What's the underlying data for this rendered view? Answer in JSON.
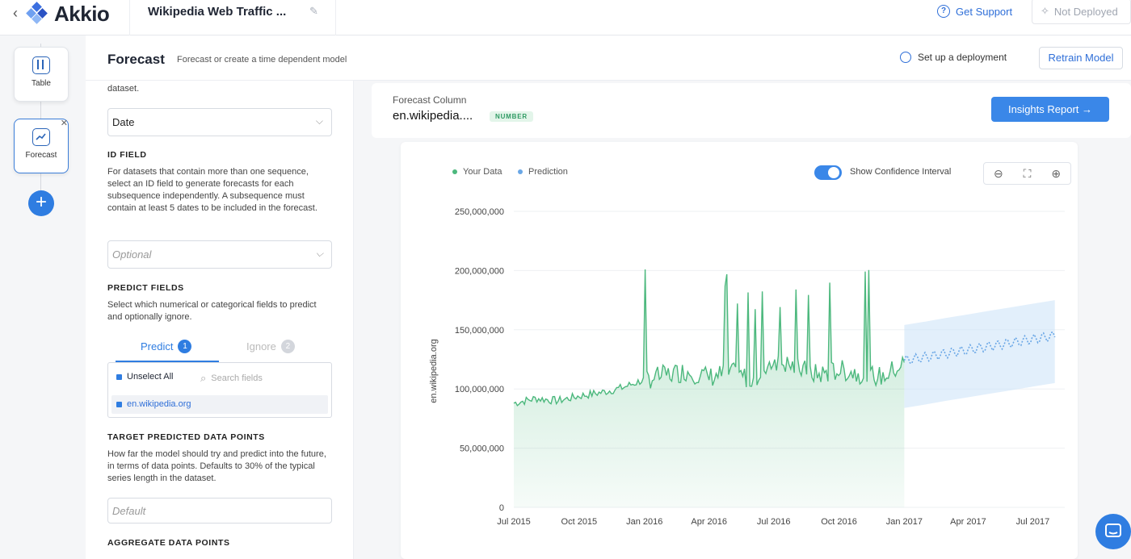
{
  "topbar": {
    "back_icon": "chevron-left-icon",
    "brand": "Akkio",
    "project_title": "Wikipedia Web Traffic ...",
    "support_label": "Get Support",
    "deploy_status": "Not Deployed"
  },
  "rail": {
    "nodes": [
      {
        "label": "Table",
        "icon": "table-icon"
      },
      {
        "label": "Forecast",
        "icon": "trend-icon"
      }
    ],
    "add_label": "+"
  },
  "header": {
    "title": "Forecast",
    "subtitle": "Forecast or create a time dependent model",
    "setup_label": "Set up a deployment",
    "retrain_label": "Retrain Model"
  },
  "panel": {
    "intro_tail": "dataset.",
    "date_value": "Date",
    "id_field_heading": "ID FIELD",
    "id_field_help": "For datasets that contain more than one sequence, select an ID field to generate forecasts for each subsequence independently. A subsequence must contain at least 5 dates to be included in the forecast.",
    "id_placeholder": "Optional",
    "predict_heading": "PREDICT FIELDS",
    "predict_help": "Select which numerical or categorical fields to predict and optionally ignore.",
    "tab_predict": "Predict",
    "tab_predict_count": "1",
    "tab_ignore": "Ignore",
    "tab_ignore_count": "2",
    "unselect_all": "Unselect All",
    "search_placeholder": "Search fields",
    "field_item": "en.wikipedia.org",
    "target_heading": "TARGET PREDICTED DATA POINTS",
    "target_help": "How far the model should try and predict into the future, in terms of data points. Defaults to 30% of the typical series length in the dataset.",
    "target_placeholder": "Default",
    "aggregate_heading": "AGGREGATE DATA POINTS"
  },
  "forecast_column": {
    "label": "Forecast Column",
    "value": "en.wikipedia....",
    "type_tag": "NUMBER",
    "insights_label": "Insights Report →"
  },
  "chart_controls": {
    "legend_data": "Your Data",
    "legend_prediction": "Prediction",
    "confidence_label": "Show Confidence Interval",
    "confidence_on": true
  },
  "colors": {
    "accent": "#2f7de1",
    "data_green": "#4cb87d",
    "prediction_blue": "#6aa7e6"
  },
  "chart_data": {
    "type": "line",
    "ylabel": "en.wikipedia.org",
    "ylim": [
      0,
      250000000
    ],
    "yticks": [
      "0",
      "50,000,000",
      "100,000,000",
      "150,000,000",
      "200,000,000",
      "250,000,000"
    ],
    "xticks": [
      "Jul 2015",
      "Oct 2015",
      "Jan 2016",
      "Apr 2016",
      "Jul 2016",
      "Oct 2016",
      "Jan 2017",
      "Apr 2017",
      "Jul 2017"
    ],
    "grid": true,
    "legend_position": "top-left",
    "series": [
      {
        "name": "Your Data",
        "x": [
          "2015-07",
          "2015-08",
          "2015-09",
          "2015-10",
          "2015-11",
          "2015-12",
          "2016-01",
          "2016-02",
          "2016-03",
          "2016-04",
          "2016-05",
          "2016-06",
          "2016-07",
          "2016-08",
          "2016-09",
          "2016-10",
          "2016-11",
          "2016-12",
          "2017-01"
        ],
        "values": [
          88000000,
          92000000,
          90000000,
          94000000,
          97000000,
          101000000,
          108000000,
          112000000,
          115000000,
          110000000,
          114000000,
          108000000,
          125000000,
          118000000,
          112000000,
          116000000,
          113000000,
          110000000,
          122000000
        ]
      },
      {
        "name": "Prediction",
        "x": [
          "2017-01",
          "2017-02",
          "2017-03",
          "2017-04",
          "2017-05",
          "2017-06",
          "2017-07",
          "2017-08"
        ],
        "values": [
          124000000,
          127000000,
          130000000,
          133000000,
          136000000,
          139000000,
          142000000,
          145000000
        ]
      }
    ]
  }
}
